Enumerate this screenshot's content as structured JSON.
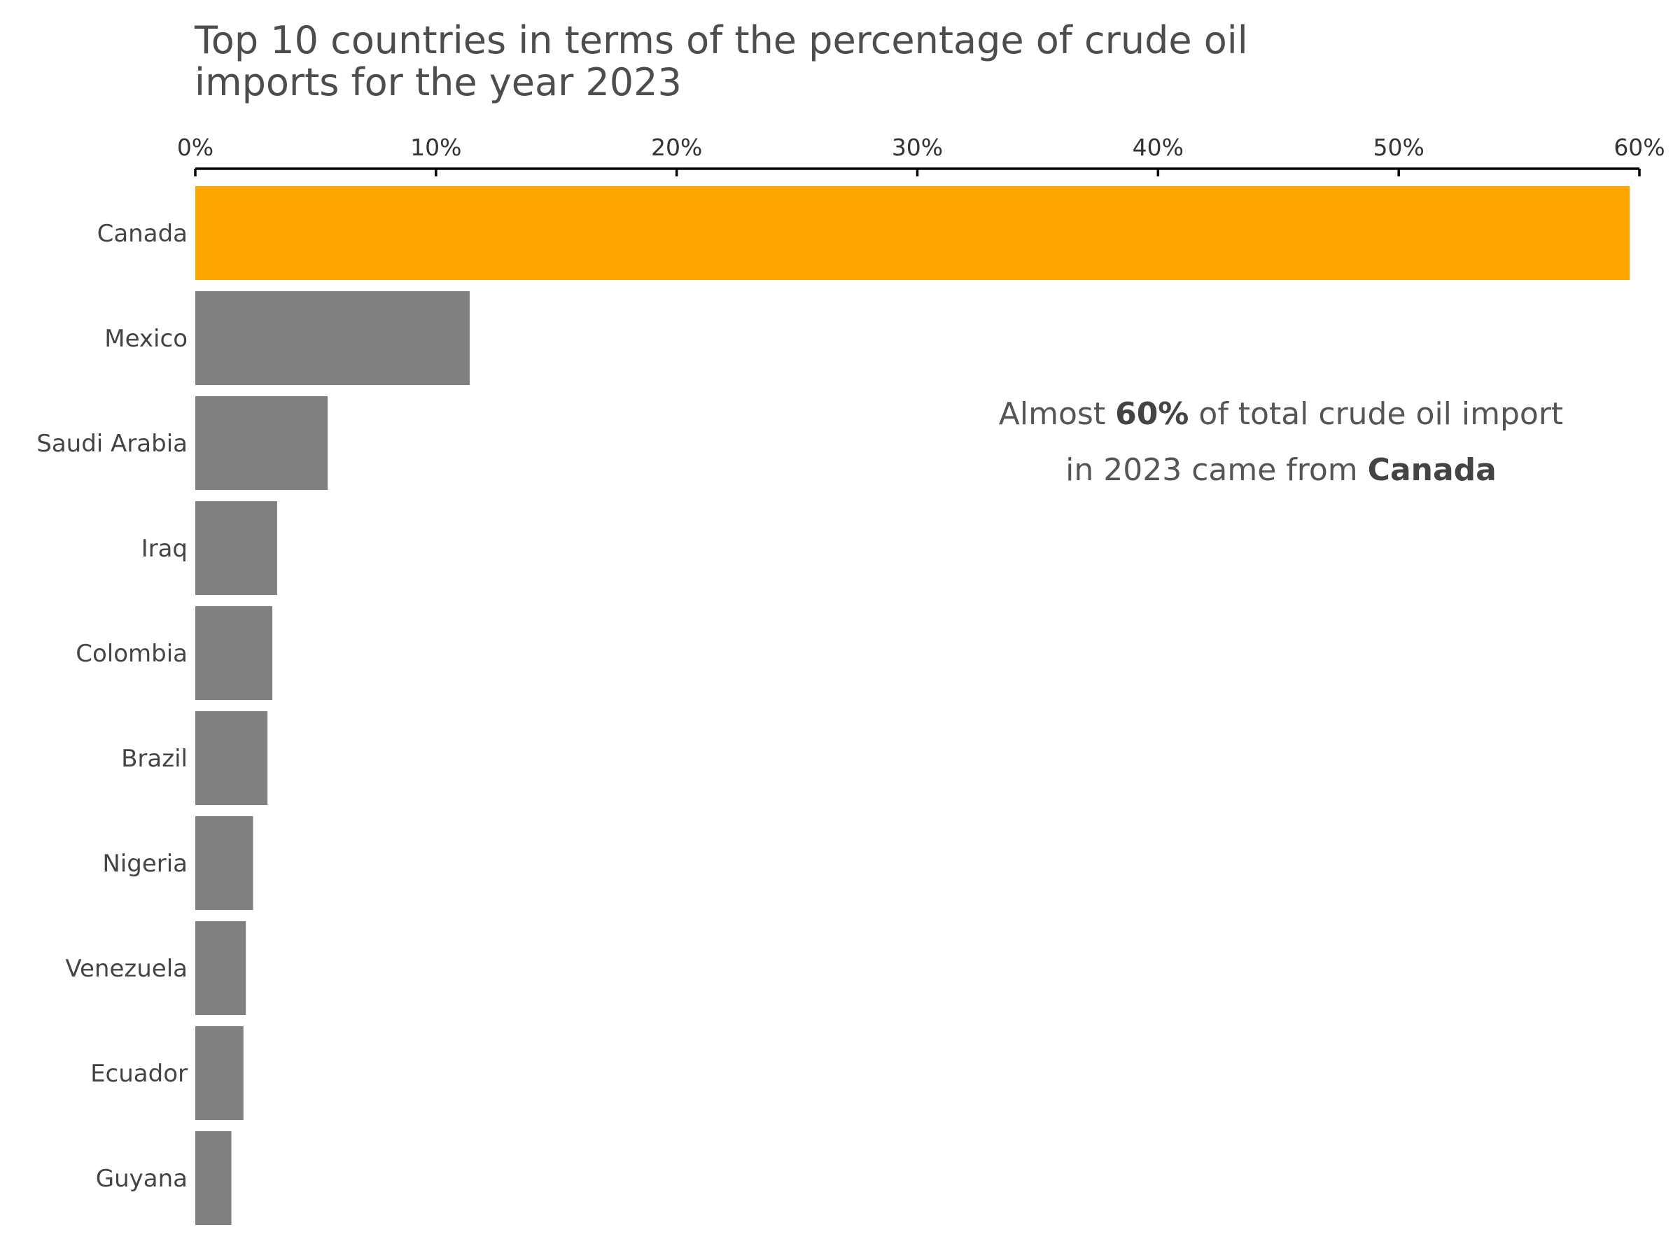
{
  "chart_data": {
    "type": "bar",
    "orientation": "horizontal",
    "title_lines": [
      "Top 10 countries in terms of the percentage of crude oil",
      "imports for the year 2023"
    ],
    "categories": [
      "Canada",
      "Mexico",
      "Saudi Arabia",
      "Iraq",
      "Colombia",
      "Brazil",
      "Nigeria",
      "Venezuela",
      "Ecuador",
      "Guyana"
    ],
    "values": [
      59.6,
      11.4,
      5.5,
      3.4,
      3.2,
      3.0,
      2.4,
      2.1,
      2.0,
      1.5
    ],
    "xlim": [
      0,
      60
    ],
    "xticks": [
      0,
      10,
      20,
      30,
      40,
      50,
      60
    ],
    "xtick_labels": [
      "0%",
      "10%",
      "20%",
      "30%",
      "40%",
      "50%",
      "60%"
    ],
    "x_axis_position": "top",
    "grid": false,
    "highlight_category": "Canada",
    "colors": {
      "highlight": "#ffa500",
      "default": "#808080",
      "axis": "#000000"
    },
    "annotation": {
      "line1": {
        "pre": "Almost ",
        "bold": "60%",
        "post": " of total crude oil import"
      },
      "line2": {
        "pre": "in 2023 came from ",
        "bold": "Canada",
        "post": ""
      }
    }
  }
}
